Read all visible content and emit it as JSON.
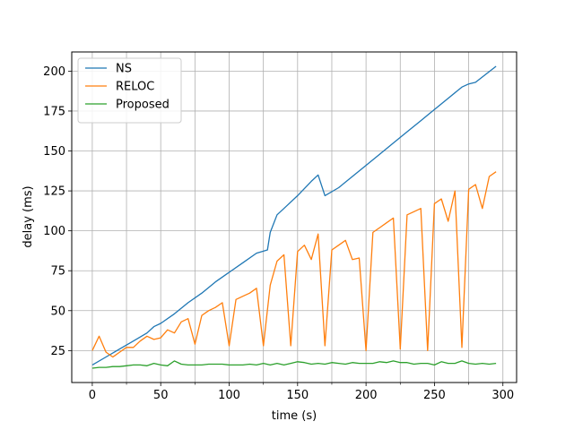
{
  "chart_data": {
    "type": "line",
    "title": "",
    "xlabel": "time (s)",
    "ylabel": "delay (ms)",
    "xlim": [
      -15,
      310
    ],
    "ylim": [
      5,
      212
    ],
    "grid": true,
    "legend_position": "top-left",
    "xticks": [
      0,
      50,
      100,
      150,
      200,
      250,
      300
    ],
    "yticks": [
      25,
      50,
      75,
      100,
      125,
      150,
      175,
      200
    ],
    "x_minor_grid": [
      25,
      75,
      125,
      175,
      225,
      275
    ],
    "series": [
      {
        "name": "NS",
        "color": "#1f77b4",
        "x": [
          0,
          10,
          20,
          30,
          40,
          45,
          50,
          60,
          70,
          80,
          90,
          100,
          110,
          120,
          128,
          130,
          135,
          140,
          150,
          160,
          165,
          170,
          180,
          190,
          200,
          210,
          220,
          230,
          240,
          250,
          260,
          270,
          275,
          280,
          295
        ],
        "y": [
          16,
          21,
          26,
          31,
          36,
          40,
          42,
          48,
          55,
          61,
          68,
          74,
          80,
          86,
          88,
          99,
          110,
          114,
          122,
          131,
          135,
          122,
          127,
          134,
          141,
          148,
          155,
          162,
          169,
          176,
          183,
          190,
          192,
          193,
          203
        ]
      },
      {
        "name": "RELOC",
        "color": "#ff7f0e",
        "x": [
          0,
          5,
          10,
          15,
          20,
          25,
          30,
          35,
          40,
          45,
          50,
          55,
          60,
          65,
          70,
          75,
          80,
          85,
          90,
          95,
          100,
          105,
          110,
          115,
          120,
          125,
          130,
          135,
          140,
          145,
          150,
          155,
          160,
          165,
          170,
          175,
          180,
          185,
          190,
          195,
          200,
          205,
          210,
          215,
          220,
          225,
          230,
          235,
          240,
          245,
          250,
          255,
          260,
          265,
          270,
          275,
          280,
          285,
          290,
          295
        ],
        "y": [
          25,
          34,
          24,
          21,
          24,
          27,
          27,
          31,
          34,
          32,
          33,
          38,
          36,
          43,
          45,
          29,
          47,
          50,
          52,
          55,
          28,
          57,
          59,
          61,
          64,
          28,
          66,
          81,
          85,
          28,
          87,
          91,
          82,
          98,
          28,
          88,
          91,
          94,
          82,
          83,
          25,
          99,
          102,
          105,
          108,
          26,
          110,
          112,
          114,
          25,
          117,
          120,
          106,
          125,
          27,
          126,
          129,
          114,
          134,
          137
        ]
      },
      {
        "name": "Proposed",
        "color": "#2ca02c",
        "x": [
          0,
          5,
          10,
          15,
          20,
          25,
          30,
          35,
          40,
          45,
          50,
          55,
          60,
          65,
          70,
          75,
          80,
          85,
          90,
          95,
          100,
          105,
          110,
          115,
          120,
          125,
          130,
          135,
          140,
          145,
          150,
          155,
          160,
          165,
          170,
          175,
          180,
          185,
          190,
          195,
          200,
          205,
          210,
          215,
          220,
          225,
          230,
          235,
          240,
          245,
          250,
          255,
          260,
          265,
          270,
          275,
          280,
          285,
          290,
          295
        ],
        "y": [
          14,
          14.5,
          14.5,
          15,
          15,
          15.5,
          16,
          16,
          15.5,
          17,
          16,
          15.5,
          18.5,
          16.5,
          16,
          16,
          16,
          16.5,
          16.5,
          16.5,
          16,
          16,
          16,
          16.5,
          16,
          17,
          16,
          17,
          16,
          17,
          18,
          17.5,
          16.5,
          17,
          16.5,
          17.5,
          17,
          16.5,
          17.5,
          17,
          17,
          17,
          18,
          17.5,
          18.5,
          17.5,
          17.5,
          16.5,
          17,
          17,
          16,
          18,
          17,
          17,
          18.5,
          17,
          16.5,
          17,
          16.5,
          17
        ]
      }
    ]
  }
}
